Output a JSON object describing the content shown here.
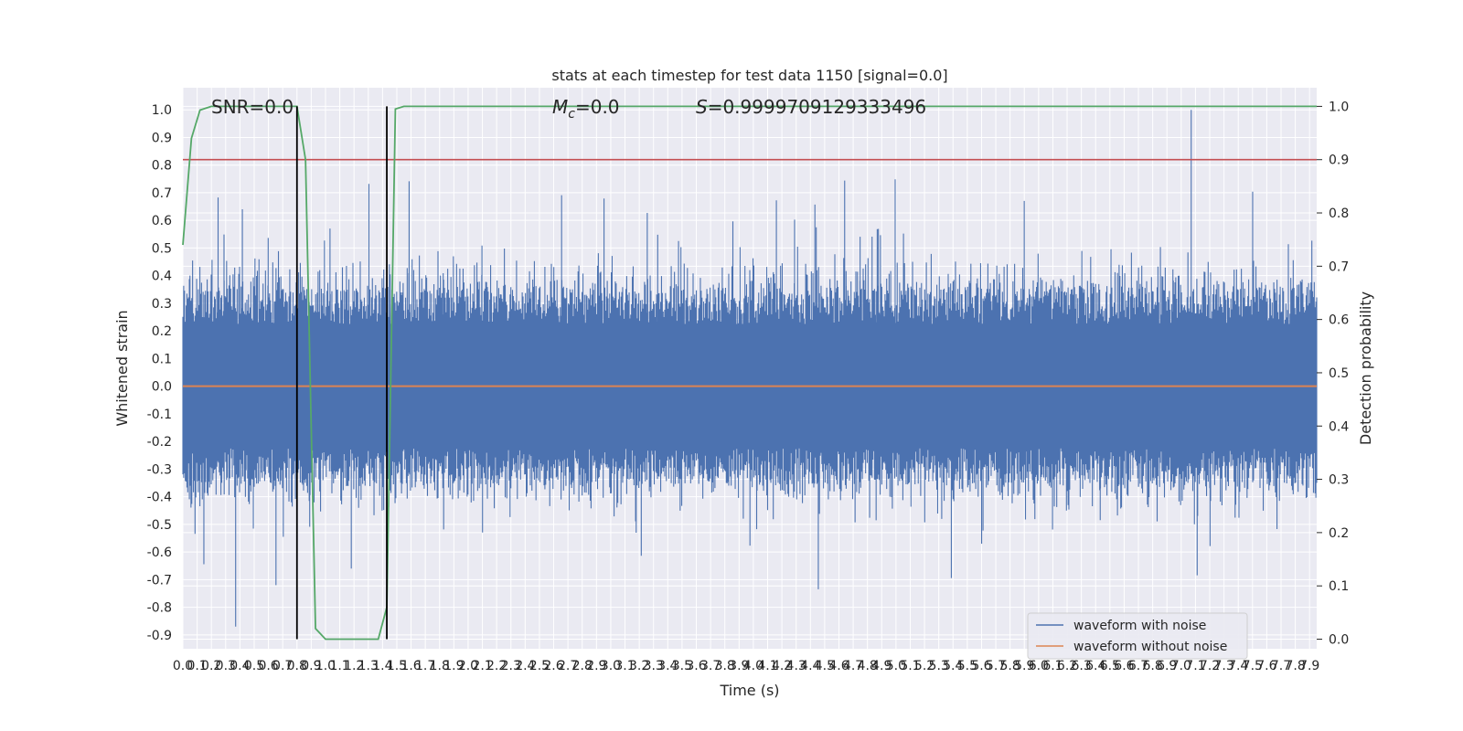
{
  "chart_data": {
    "type": "line",
    "title": "stats at each timestep for test data 1150 [signal=0.0]",
    "xlabel": "Time (s)",
    "ylabel_left": "Whitened strain",
    "ylabel_right": "Detection probability",
    "xlim": [
      0,
      7.95
    ],
    "ylim_left": [
      -0.95,
      1.08
    ],
    "ylim_right": [
      -0.018,
      1.035
    ],
    "x_ticks": [
      "0.0",
      "0.1",
      "0.2",
      "0.3",
      "0.4",
      "0.5",
      "0.6",
      "0.7",
      "0.8",
      "0.9",
      "1.0",
      "1.1",
      "1.2",
      "1.3",
      "1.4",
      "1.5",
      "1.6",
      "1.7",
      "1.8",
      "1.9",
      "2.0",
      "2.1",
      "2.2",
      "2.3",
      "2.4",
      "2.5",
      "2.6",
      "2.7",
      "2.8",
      "2.9",
      "3.0",
      "3.1",
      "3.2",
      "3.3",
      "3.4",
      "3.5",
      "3.6",
      "3.7",
      "3.8",
      "3.9",
      "4.0",
      "4.1",
      "4.2",
      "4.3",
      "4.4",
      "4.5",
      "4.6",
      "4.7",
      "4.8",
      "4.9",
      "5.0",
      "5.1",
      "5.2",
      "5.3",
      "5.4",
      "5.5",
      "5.6",
      "5.7",
      "5.8",
      "5.9",
      "6.0",
      "6.1",
      "6.2",
      "6.3",
      "6.4",
      "6.5",
      "6.6",
      "6.7",
      "6.8",
      "6.9",
      "7.0",
      "7.1",
      "7.2",
      "7.3",
      "7.4",
      "7.5",
      "7.6",
      "7.7",
      "7.8",
      "7.9"
    ],
    "y_ticks_left": [
      "-0.9",
      "-0.8",
      "-0.7",
      "-0.6",
      "-0.5",
      "-0.4",
      "-0.3",
      "-0.2",
      "-0.1",
      "0.0",
      "0.1",
      "0.2",
      "0.3",
      "0.4",
      "0.5",
      "0.6",
      "0.7",
      "0.8",
      "0.9",
      "1.0"
    ],
    "y_ticks_right": [
      "0.0",
      "0.1",
      "0.2",
      "0.3",
      "0.4",
      "0.5",
      "0.6",
      "0.7",
      "0.8",
      "0.9",
      "1.0"
    ],
    "annotations": [
      {
        "text": "SNR=0.0",
        "x": 0.2,
        "y": 1.0
      },
      {
        "text_main": "M",
        "text_sub": "c",
        "text_rest": "=0.0",
        "x": 2.6,
        "y": 1.0
      },
      {
        "text_main": "S",
        "text_rest": "=0.9999709129333496",
        "x": 3.6,
        "y": 1.0
      }
    ],
    "threshold_right": 0.9,
    "vertical_lines": [
      0.8,
      1.43
    ],
    "series": [
      {
        "name": "waveform with noise",
        "color": "#4c72b0",
        "axis": "left",
        "kind": "noise",
        "x_range": [
          0,
          7.95
        ],
        "envelope_typical": 0.3,
        "peak_max": 1.0,
        "peak_min": -0.87
      },
      {
        "name": "waveform without noise",
        "color": "#dd8452",
        "axis": "left",
        "x": [
          0,
          7.95
        ],
        "y": [
          0.0,
          0.0
        ]
      },
      {
        "name": "",
        "color": "#55a868",
        "axis": "right",
        "x": [
          0.0,
          0.06,
          0.12,
          0.2,
          0.3,
          0.4,
          0.5,
          0.6,
          0.7,
          0.8,
          0.86,
          0.93,
          1.0,
          1.1,
          1.2,
          1.3,
          1.37,
          1.43,
          1.49,
          1.55,
          1.7,
          2.0,
          3.0,
          4.0,
          5.0,
          6.0,
          7.0,
          7.95
        ],
        "y": [
          0.74,
          0.94,
          0.993,
          1.0,
          1.0,
          1.0,
          1.0,
          1.0,
          1.0,
          1.0,
          0.9,
          0.02,
          0.0,
          0.0,
          0.0,
          0.0,
          0.0,
          0.06,
          0.995,
          1.0,
          1.0,
          1.0,
          1.0,
          1.0,
          1.0,
          1.0,
          1.0,
          1.0
        ]
      },
      {
        "name": "",
        "color": "#c44e52",
        "axis": "right",
        "x": [
          0,
          7.95
        ],
        "y": [
          0.9,
          0.9
        ]
      }
    ],
    "legend": {
      "placement": "lower-right",
      "entries": [
        "waveform with noise",
        "waveform without noise"
      ]
    },
    "grid": true
  }
}
